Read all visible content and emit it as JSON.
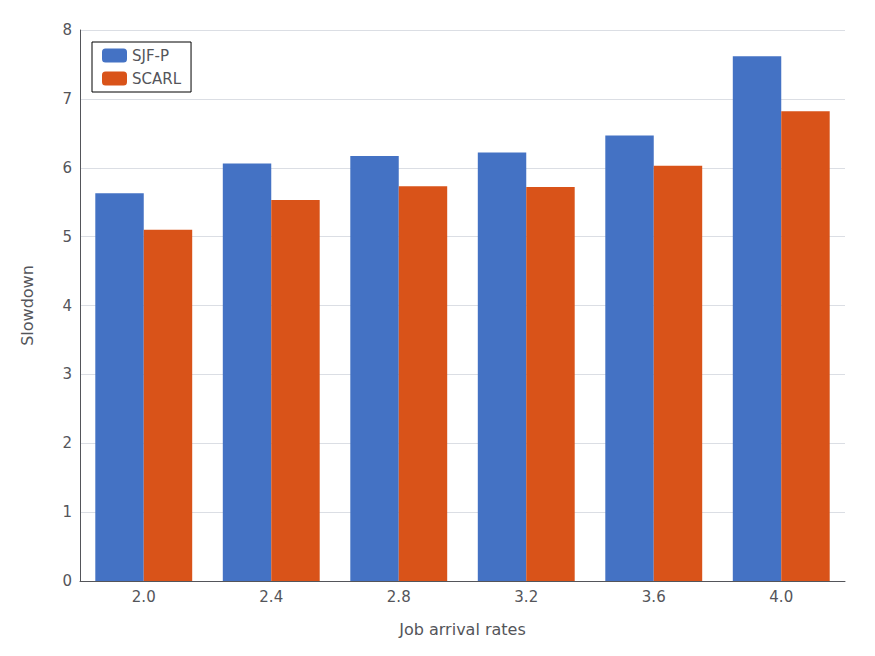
{
  "chart_data": {
    "type": "bar",
    "xlabel": "Job arrival rates",
    "ylabel": "Slowdown",
    "categories": [
      "2.0",
      "2.4",
      "2.8",
      "3.2",
      "3.6",
      "4.0"
    ],
    "series": [
      {
        "name": "SJF-P",
        "color": "#4472c4",
        "values": [
          5.63,
          6.06,
          6.17,
          6.22,
          6.47,
          7.62
        ]
      },
      {
        "name": "SCARL",
        "color": "#d95319",
        "values": [
          5.1,
          5.53,
          5.73,
          5.72,
          6.03,
          6.82
        ]
      }
    ],
    "ylim": [
      0,
      8
    ],
    "yticks": [
      0,
      1,
      2,
      3,
      4,
      5,
      6,
      7,
      8
    ],
    "grid": true,
    "legend": "upper left"
  }
}
